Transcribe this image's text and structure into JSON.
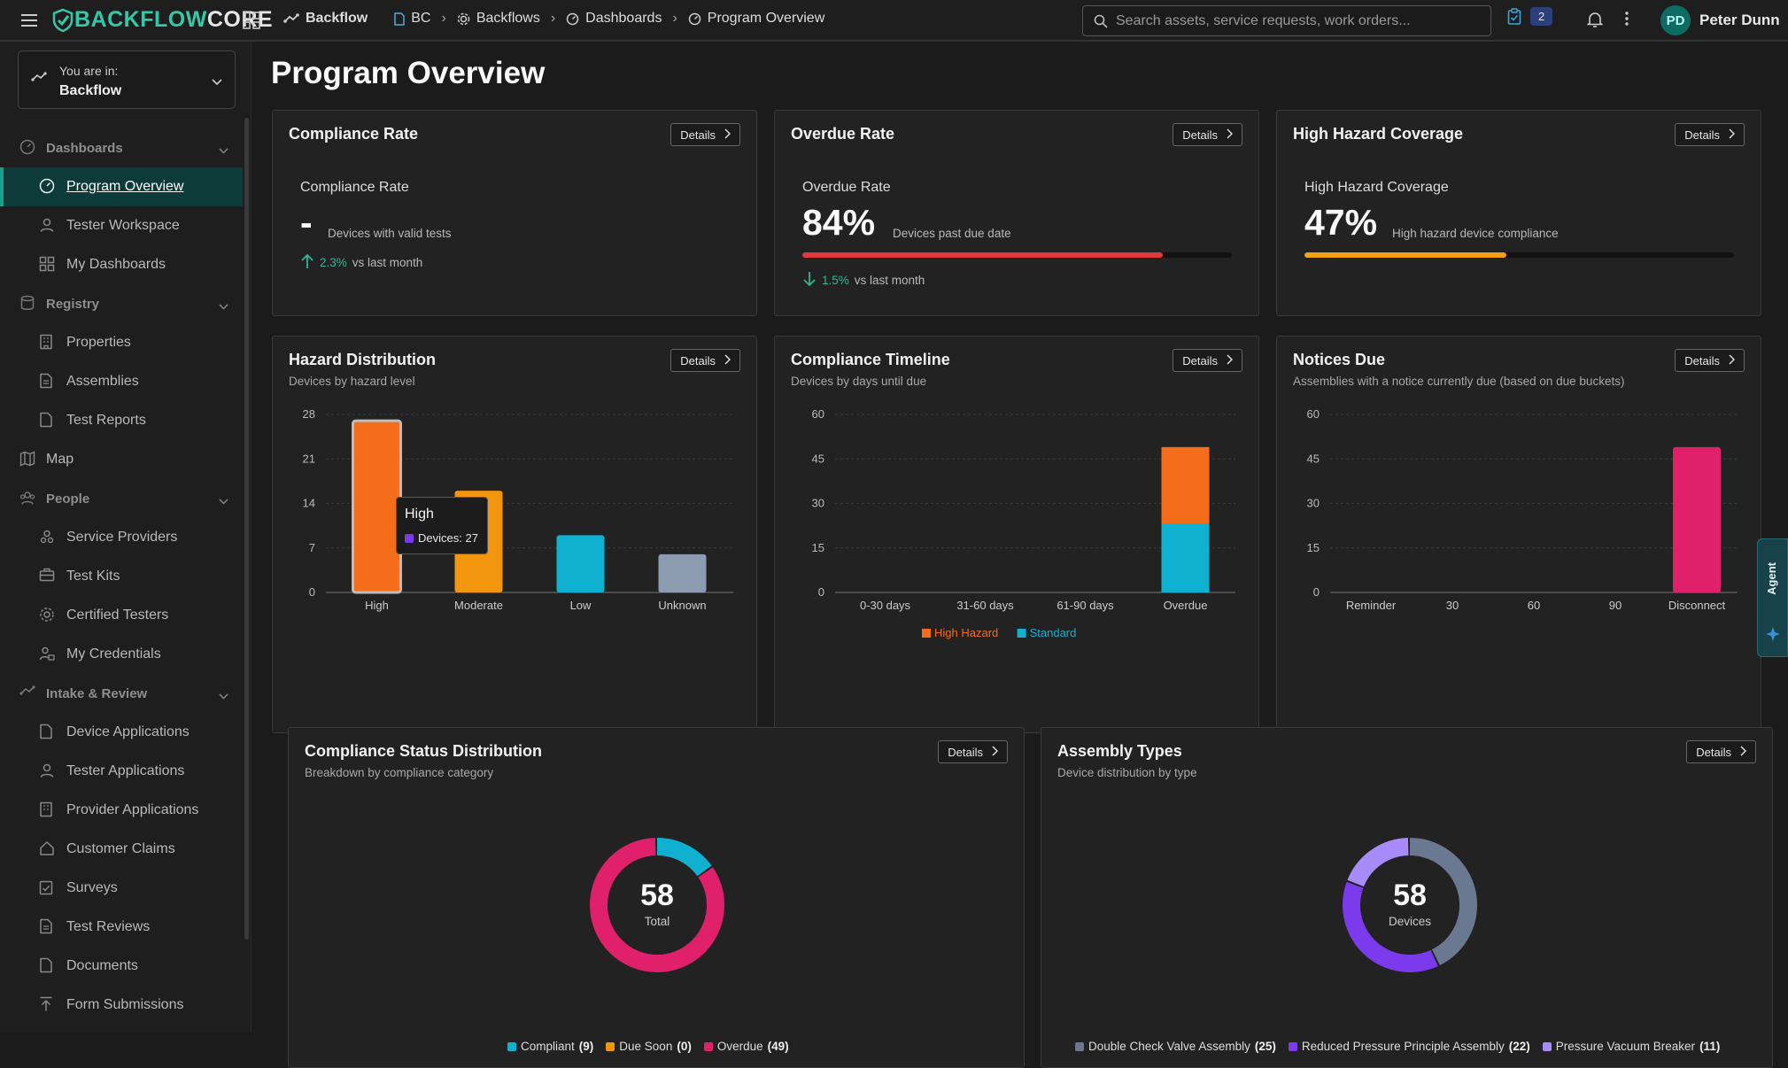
{
  "topbar": {
    "logo_a": "BACKFLOW",
    "logo_b": "CORE",
    "app_name": "Backflow",
    "breadcrumbs": [
      "BC",
      "Backflows",
      "Dashboards",
      "Program Overview"
    ],
    "search_placeholder": "Search assets, service requests, work orders...",
    "task_count": "2",
    "user_initials": "PD",
    "user_name": "Peter Dunn"
  },
  "sidebar": {
    "context_label": "You are in:",
    "context_value": "Backflow",
    "sections": [
      {
        "label": "Dashboards",
        "items": [
          "Program Overview",
          "Tester Workspace",
          "My Dashboards"
        ]
      },
      {
        "label": "Registry",
        "items": [
          "Properties",
          "Assemblies",
          "Test Reports"
        ]
      },
      {
        "label": "Map",
        "items": []
      },
      {
        "label": "People",
        "items": [
          "Service Providers",
          "Test Kits",
          "Certified Testers",
          "My Credentials"
        ]
      },
      {
        "label": "Intake & Review",
        "items": [
          "Device Applications",
          "Tester Applications",
          "Provider Applications",
          "Customer Claims",
          "Surveys",
          "Test Reviews",
          "Documents",
          "Form Submissions"
        ]
      }
    ],
    "active_item": "Program Overview"
  },
  "page": {
    "title": "Program Overview",
    "details_label": "Details"
  },
  "kpis": {
    "compliance": {
      "title": "Compliance Rate",
      "label": "Compliance Rate",
      "value": "-",
      "desc": "Devices with valid tests",
      "trend_pct": "2.3%",
      "trend_text": "vs last month"
    },
    "overdue": {
      "title": "Overdue Rate",
      "label": "Overdue Rate",
      "value": "84%",
      "progress": 0.84,
      "desc": "Devices past due date",
      "trend_pct": "1.5%",
      "trend_text": "vs last month",
      "color": "#e23a3a"
    },
    "hazard": {
      "title": "High Hazard Coverage",
      "label": "High Hazard Coverage",
      "value": "47%",
      "progress": 0.47,
      "desc": "High hazard device compliance",
      "color": "#f2a20f"
    }
  },
  "charts": {
    "hazard_title": "Hazard Distribution",
    "hazard_sub": "Devices by hazard level",
    "timeline_title": "Compliance Timeline",
    "timeline_sub": "Devices by days until due",
    "notices_title": "Notices Due",
    "notices_sub": "Assemblies with a notice currently due (based on due buckets)",
    "status_title": "Compliance Status Distribution",
    "status_sub": "Breakdown by compliance category",
    "types_title": "Assembly Types",
    "types_sub": "Device distribution by type",
    "tooltip_title": "High",
    "tooltip_text": "Devices: 27",
    "status_total": "58",
    "status_total_label": "Total",
    "types_total": "58",
    "types_total_label": "Devices"
  },
  "agent_label": "Agent",
  "chart_data": [
    {
      "type": "bar",
      "categories": [
        "High",
        "Moderate",
        "Low",
        "Unknown"
      ],
      "values": [
        27,
        16,
        9,
        6
      ],
      "colors": [
        "#f46d1a",
        "#f2950f",
        "#0fb0d0",
        "#8c9bb0"
      ],
      "yticks": [
        0,
        7,
        14,
        21,
        28
      ],
      "ylim": [
        0,
        28
      ]
    },
    {
      "type": "bar",
      "categories": [
        "0-30 days",
        "31-60 days",
        "61-90 days",
        "Overdue"
      ],
      "series": [
        {
          "name": "Standard",
          "values": [
            0,
            0,
            0,
            23
          ],
          "color": "#0fb0d0"
        },
        {
          "name": "High Hazard",
          "values": [
            0,
            0,
            0,
            26
          ],
          "color": "#f46d1a"
        }
      ],
      "yticks": [
        0,
        15,
        30,
        45,
        60
      ],
      "ylim": [
        0,
        60
      ]
    },
    {
      "type": "bar",
      "categories": [
        "Reminder",
        "30",
        "60",
        "90",
        "Disconnect"
      ],
      "values": [
        0,
        0,
        0,
        0,
        49
      ],
      "colors": [
        "#e0206a",
        "#e0206a",
        "#e0206a",
        "#e0206a",
        "#e0206a"
      ],
      "yticks": [
        0,
        15,
        30,
        45,
        60
      ],
      "ylim": [
        0,
        60
      ]
    },
    {
      "type": "pie",
      "labels": [
        "Compliant",
        "Due Soon",
        "Overdue"
      ],
      "values": [
        9,
        0,
        49
      ],
      "colors": [
        "#0fb0d0",
        "#f2950f",
        "#e0206a"
      ]
    },
    {
      "type": "pie",
      "labels": [
        "Double Check Valve Assembly",
        "Reduced Pressure Principle Assembly",
        "Pressure Vacuum Breaker"
      ],
      "values": [
        25,
        22,
        11
      ],
      "colors": [
        "#6b7891",
        "#7c3aed",
        "#a78bfa"
      ]
    }
  ]
}
